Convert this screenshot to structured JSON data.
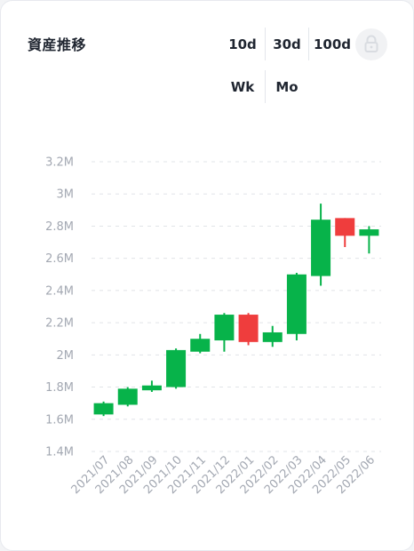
{
  "header": {
    "title": "資産推移",
    "ranges": [
      "10d",
      "30d",
      "100d"
    ],
    "periods": [
      "Wk",
      "Mo"
    ],
    "lock_icon": "lock-icon"
  },
  "colors": {
    "up": "#07b34a",
    "down": "#ef3d3d",
    "grid": "#e1e4e8",
    "tick_text": "#a3a8b2",
    "title_text": "#1f2530"
  },
  "chart_data": {
    "type": "candlestick",
    "title": "",
    "xlabel": "",
    "ylabel": "",
    "ylim": [
      1.4,
      3.2
    ],
    "y_ticks": [
      {
        "value": 1.4,
        "label": "1.4M"
      },
      {
        "value": 1.6,
        "label": "1.6M"
      },
      {
        "value": 1.8,
        "label": "1.8M"
      },
      {
        "value": 2.0,
        "label": "2M"
      },
      {
        "value": 2.2,
        "label": "2.2M"
      },
      {
        "value": 2.4,
        "label": "2.4M"
      },
      {
        "value": 2.6,
        "label": "2.6M"
      },
      {
        "value": 2.8,
        "label": "2.8M"
      },
      {
        "value": 3.0,
        "label": "3M"
      },
      {
        "value": 3.2,
        "label": "3.2M"
      }
    ],
    "grid": true,
    "categories": [
      "2021/07",
      "2021/08",
      "2021/09",
      "2021/10",
      "2021/11",
      "2021/12",
      "2022/01",
      "2022/02",
      "2022/03",
      "2022/04",
      "2022/05",
      "2022/06"
    ],
    "candles": [
      {
        "open": 1.63,
        "high": 1.71,
        "low": 1.62,
        "close": 1.7
      },
      {
        "open": 1.69,
        "high": 1.8,
        "low": 1.68,
        "close": 1.79
      },
      {
        "open": 1.78,
        "high": 1.84,
        "low": 1.77,
        "close": 1.81
      },
      {
        "open": 1.8,
        "high": 2.04,
        "low": 1.79,
        "close": 2.03
      },
      {
        "open": 2.02,
        "high": 2.13,
        "low": 2.01,
        "close": 2.1
      },
      {
        "open": 2.09,
        "high": 2.26,
        "low": 2.02,
        "close": 2.25
      },
      {
        "open": 2.25,
        "high": 2.26,
        "low": 2.06,
        "close": 2.08
      },
      {
        "open": 2.08,
        "high": 2.18,
        "low": 2.05,
        "close": 2.14
      },
      {
        "open": 2.13,
        "high": 2.51,
        "low": 2.09,
        "close": 2.5
      },
      {
        "open": 2.49,
        "high": 2.94,
        "low": 2.43,
        "close": 2.84
      },
      {
        "open": 2.85,
        "high": 2.85,
        "low": 2.67,
        "close": 2.74
      },
      {
        "open": 2.74,
        "high": 2.8,
        "low": 2.63,
        "close": 2.78
      }
    ]
  }
}
